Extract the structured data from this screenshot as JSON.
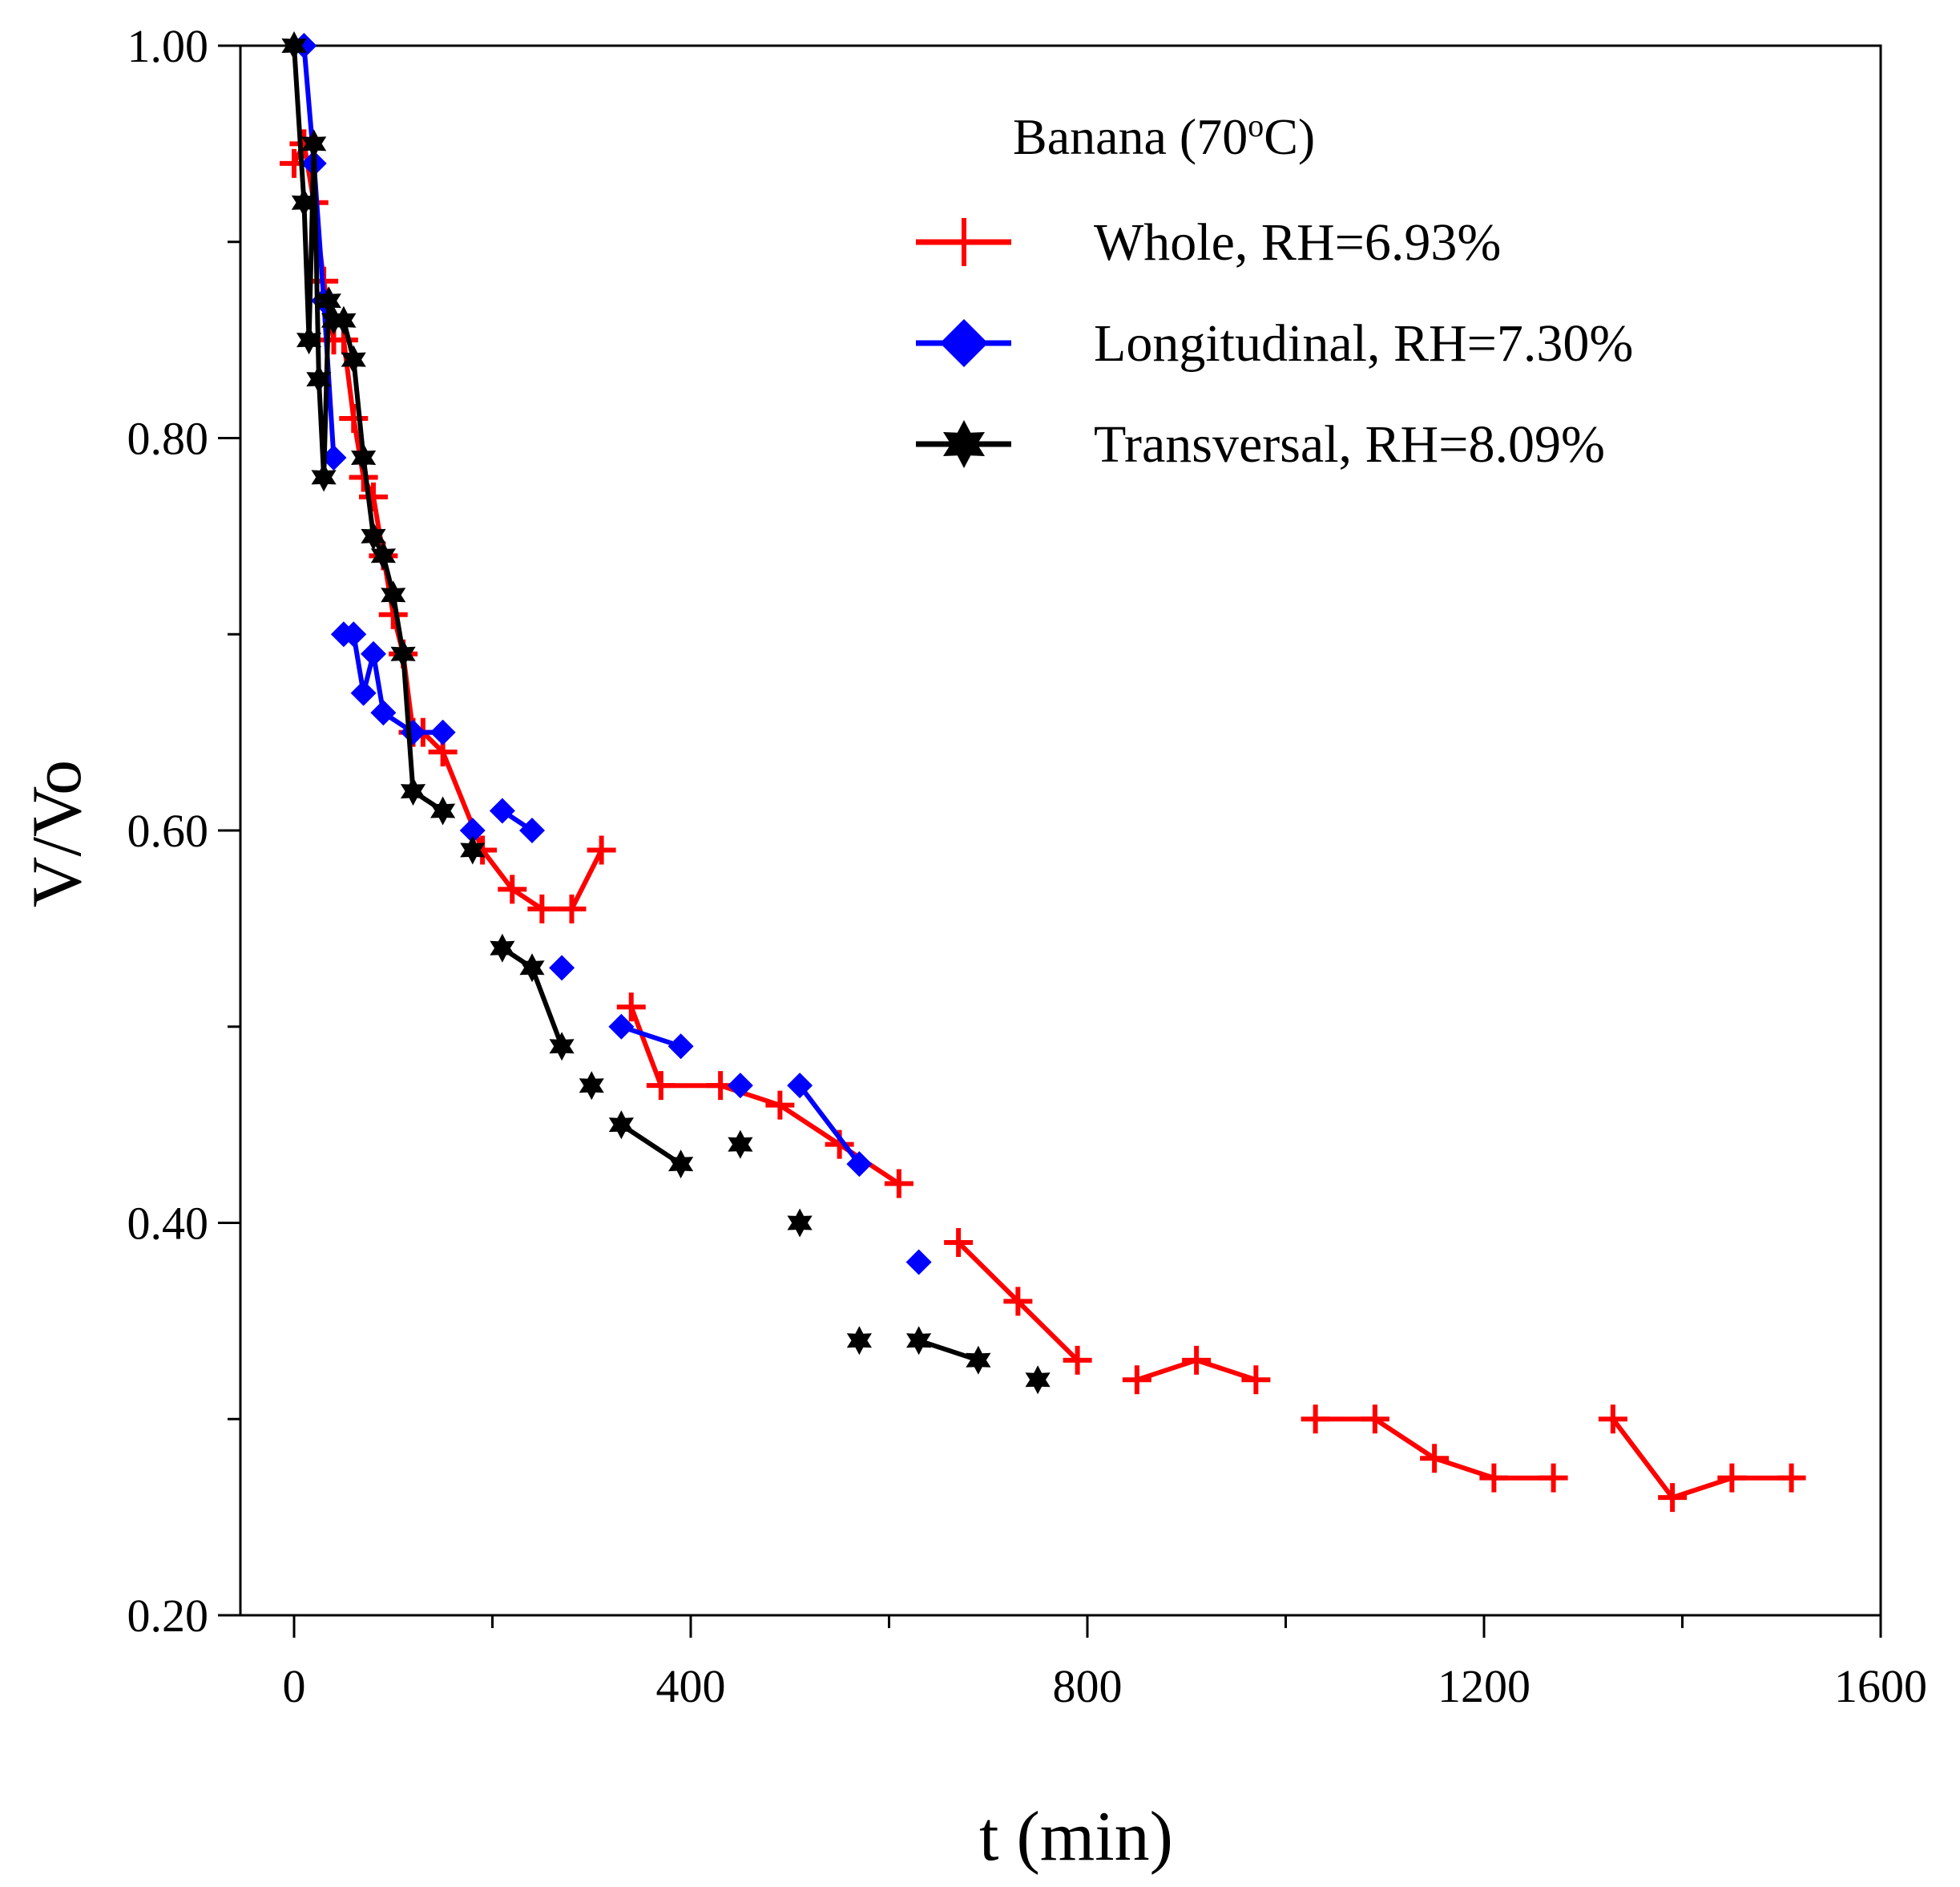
{
  "chart_data": {
    "type": "scatter",
    "title": "",
    "xlabel": "t (min)",
    "ylabel": "V/Vo",
    "xlim": [
      -70,
      1600
    ],
    "ylim": [
      0.2,
      1.0
    ],
    "xticks": [
      0,
      400,
      800,
      1200,
      1600
    ],
    "xtick_labels": [
      "0",
      "400",
      "800",
      "1200",
      "1600"
    ],
    "yticks": [
      0.2,
      0.4,
      0.6,
      0.8,
      1.0
    ],
    "ytick_labels": [
      "0.20",
      "0.40",
      "0.60",
      "0.80",
      "1.00"
    ],
    "grid": false,
    "legend": {
      "placement": "top-right",
      "title_main": "Banana (70",
      "title_sup": "o",
      "title_end": "C)"
    },
    "series": [
      {
        "name": "Whole, RH=6.93%",
        "color": "#ff0000",
        "marker": "plus",
        "x": [
          0,
          10,
          20,
          30,
          40,
          50,
          60,
          70,
          80,
          90,
          100,
          110,
          120,
          130,
          150,
          190,
          220,
          250,
          280,
          310,
          340,
          370,
          430,
          490,
          550,
          610,
          670,
          730,
          790,
          850,
          910,
          970,
          1030,
          1090,
          1150,
          1210,
          1270,
          1330,
          1390,
          1450,
          1510
        ],
        "y": [
          0.94,
          0.95,
          0.92,
          0.88,
          0.85,
          0.85,
          0.81,
          0.78,
          0.77,
          0.74,
          0.71,
          0.69,
          0.65,
          0.65,
          0.64,
          0.59,
          0.57,
          0.56,
          0.56,
          0.59,
          0.51,
          0.47,
          0.47,
          0.46,
          0.44,
          0.42,
          0.39,
          0.36,
          0.33,
          0.32,
          0.33,
          0.32,
          0.3,
          0.3,
          0.28,
          0.27,
          0.27,
          0.3,
          0.26,
          0.27,
          0.27
        ],
        "segments": [
          [
            0,
            19
          ],
          [
            20,
            22
          ],
          [
            22,
            25
          ],
          [
            26,
            28
          ],
          [
            29,
            31
          ],
          [
            32,
            34
          ],
          [
            34,
            36
          ],
          [
            37,
            40
          ]
        ]
      },
      {
        "name": "Longitudinal, RH=7.30%",
        "color": "#0000ff",
        "marker": "diamond",
        "x": [
          10,
          20,
          30,
          40,
          50,
          60,
          70,
          80,
          90,
          120,
          150,
          180,
          210,
          240,
          270,
          330,
          390,
          450,
          510,
          570,
          630
        ],
        "y": [
          1.0,
          0.94,
          0.87,
          0.79,
          0.7,
          0.7,
          0.67,
          0.69,
          0.66,
          0.65,
          0.65,
          0.6,
          0.61,
          0.6,
          0.53,
          0.5,
          0.49,
          0.47,
          0.47,
          0.43,
          0.38
        ],
        "segments": [
          [
            0,
            3
          ],
          [
            4,
            10
          ],
          [
            12,
            13
          ],
          [
            15,
            16
          ],
          [
            18,
            19
          ]
        ]
      },
      {
        "name": "Transversal, RH=8.09%",
        "color": "#000000",
        "marker": "star",
        "x": [
          0,
          10,
          15,
          20,
          25,
          30,
          35,
          40,
          50,
          60,
          70,
          80,
          90,
          100,
          110,
          120,
          150,
          180,
          210,
          240,
          270,
          300,
          330,
          390,
          450,
          510,
          570,
          630,
          690,
          750
        ],
        "y": [
          1.0,
          0.92,
          0.85,
          0.95,
          0.83,
          0.78,
          0.87,
          0.86,
          0.86,
          0.84,
          0.79,
          0.75,
          0.74,
          0.72,
          0.69,
          0.62,
          0.61,
          0.59,
          0.54,
          0.53,
          0.49,
          0.47,
          0.45,
          0.43,
          0.44,
          0.4,
          0.34,
          0.34,
          0.33,
          0.32
        ],
        "segments": [
          [
            0,
            16
          ],
          [
            18,
            20
          ],
          [
            22,
            23
          ],
          [
            25,
            25
          ],
          [
            27,
            28
          ]
        ]
      }
    ]
  }
}
